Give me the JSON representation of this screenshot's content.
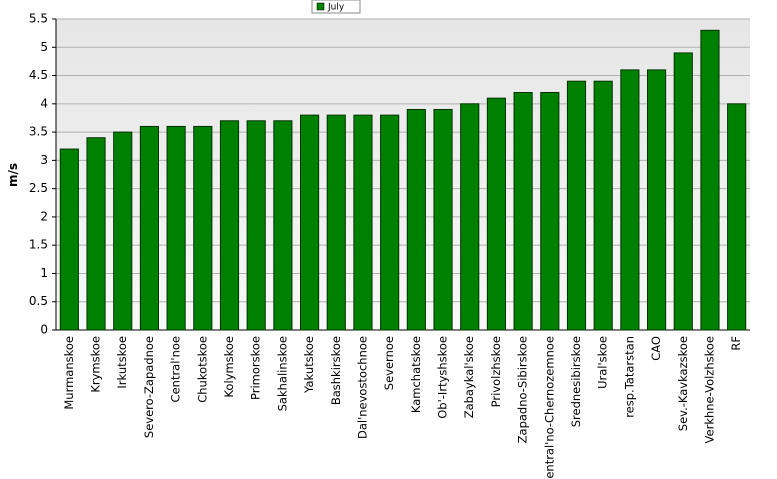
{
  "chart_data": {
    "type": "bar",
    "y_label": "m/s",
    "categories": [
      "Murmanskoe",
      "Krymskoe",
      "Irkutskoe",
      "Severo-Zapadnoe",
      "Central'noe",
      "Chukotskoe",
      "Kolymskoe",
      "Primorskoe",
      "Sakhalinskoe",
      "Yakutskoe",
      "Bashkirskoe",
      "Dal'nevostochnoe",
      "Severnoe",
      "Kamchatskoe",
      "Ob'-Irtyshskoe",
      "Zabaykal'skoe",
      "Privolzhskoe",
      "Zapadno-Sibirskoe",
      "Central'no-Chernozemnoe",
      "Srednesibirskoe",
      "Ural'skoe",
      "resp.Tatarstan",
      "CAO",
      "Sev.-Kavkazskoe",
      "Verkhne-Volzhskoe",
      "RF"
    ],
    "series": [
      {
        "name": "July",
        "color": "#008000",
        "values": [
          3.2,
          3.4,
          3.5,
          3.6,
          3.6,
          3.6,
          3.7,
          3.7,
          3.7,
          3.8,
          3.8,
          3.8,
          3.8,
          3.9,
          3.9,
          4.0,
          4.1,
          4.2,
          4.2,
          4.4,
          4.4,
          4.6,
          4.6,
          4.9,
          5.3,
          4.0
        ]
      }
    ],
    "ylim": [
      0,
      5.5
    ],
    "yticks": [
      0,
      0.5,
      1,
      1.5,
      2,
      2.5,
      3,
      3.5,
      4,
      4.5,
      5,
      5.5
    ],
    "grid": true,
    "legend": "top"
  }
}
